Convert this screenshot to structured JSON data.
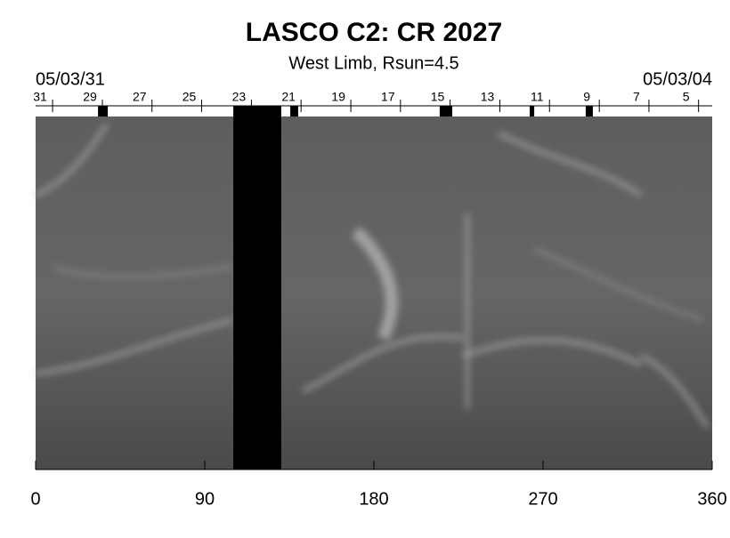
{
  "chart_data": {
    "type": "synoptic-map",
    "title": "LASCO C2: CR 2027",
    "subtitle": "West Limb, Rsun=4.5",
    "start_date": "05/03/31",
    "end_date": "05/03/04",
    "xlim": [
      0,
      360
    ],
    "xticks": [
      0,
      90,
      180,
      270,
      360
    ],
    "top_ticks": [
      {
        "value": 2.4,
        "label": "31"
      },
      {
        "value": 28.9,
        "label": "29"
      },
      {
        "value": 55.3,
        "label": "27"
      },
      {
        "value": 81.7,
        "label": "25"
      },
      {
        "value": 108.2,
        "label": "23"
      },
      {
        "value": 134.6,
        "label": "21"
      },
      {
        "value": 161.1,
        "label": "19"
      },
      {
        "value": 187.5,
        "label": "17"
      },
      {
        "value": 213.9,
        "label": "15"
      },
      {
        "value": 240.4,
        "label": "13"
      },
      {
        "value": 266.8,
        "label": "11"
      },
      {
        "value": 293.3,
        "label": "9"
      },
      {
        "value": 319.7,
        "label": "7"
      },
      {
        "value": 346.1,
        "label": "5"
      }
    ],
    "data_gaps": [
      [
        105.2,
        130.7
      ]
    ],
    "gap_markers": [
      [
        33.2,
        38.4
      ],
      [
        135.5,
        139.7
      ],
      [
        215.0,
        221.7
      ],
      [
        262.9,
        265.3
      ],
      [
        292.7,
        296.5
      ]
    ]
  }
}
